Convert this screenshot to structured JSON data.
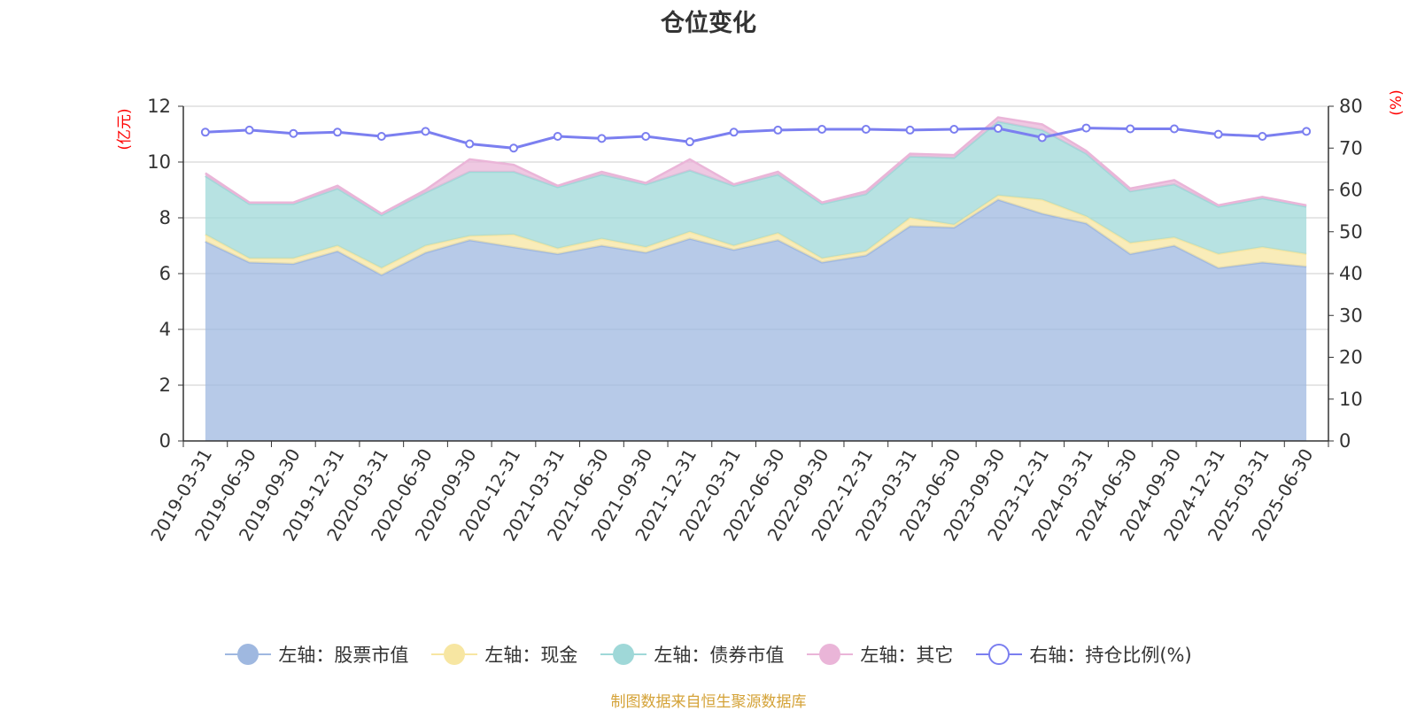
{
  "chart_data": {
    "type": "area",
    "title": "仓位变化",
    "y_left_label": "(亿元)",
    "y_right_label": "(%)",
    "y_left_range": [
      0,
      12
    ],
    "y_left_ticks": [
      "0",
      "2",
      "4",
      "6",
      "8",
      "10",
      "12"
    ],
    "y_right_range": [
      0,
      80
    ],
    "y_right_ticks": [
      "0",
      "10",
      "20",
      "30",
      "40",
      "50",
      "60",
      "70",
      "80"
    ],
    "categories": [
      "2019-03-31",
      "2019-06-30",
      "2019-09-30",
      "2019-12-31",
      "2020-03-31",
      "2020-06-30",
      "2020-09-30",
      "2020-12-31",
      "2021-03-31",
      "2021-06-30",
      "2021-09-30",
      "2021-12-31",
      "2022-03-31",
      "2022-06-30",
      "2022-09-30",
      "2022-12-31",
      "2023-03-31",
      "2023-06-30",
      "2023-09-30",
      "2023-12-31",
      "2024-03-31",
      "2024-06-30",
      "2024-09-30",
      "2024-12-31",
      "2025-03-31",
      "2025-06-30"
    ],
    "stacked": true,
    "series": [
      {
        "name": "左轴：股票市值",
        "axis": "left",
        "color": "#9fb8e0",
        "values": [
          7.15,
          6.4,
          6.35,
          6.8,
          5.95,
          6.75,
          7.2,
          6.95,
          6.7,
          7.0,
          6.75,
          7.25,
          6.85,
          7.2,
          6.4,
          6.65,
          7.7,
          7.65,
          8.65,
          8.15,
          7.8,
          6.7,
          7.0,
          6.2,
          6.4,
          6.25
        ]
      },
      {
        "name": "左轴：现金",
        "axis": "left",
        "color": "#f7e6a2",
        "values": [
          0.25,
          0.15,
          0.2,
          0.2,
          0.25,
          0.25,
          0.15,
          0.45,
          0.2,
          0.25,
          0.2,
          0.25,
          0.15,
          0.25,
          0.15,
          0.15,
          0.3,
          0.1,
          0.15,
          0.5,
          0.25,
          0.4,
          0.3,
          0.5,
          0.55,
          0.45
        ]
      },
      {
        "name": "左轴：债券市值",
        "axis": "left",
        "color": "#9fd8d8",
        "values": [
          2.1,
          1.95,
          1.95,
          2.05,
          1.9,
          1.9,
          2.3,
          2.25,
          2.2,
          2.3,
          2.25,
          2.2,
          2.15,
          2.1,
          1.95,
          2.05,
          2.2,
          2.4,
          2.65,
          2.5,
          2.25,
          1.85,
          1.9,
          1.7,
          1.75,
          1.7
        ]
      },
      {
        "name": "左轴：其它",
        "axis": "left",
        "color": "#eab5d8",
        "values": [
          0.1,
          0.05,
          0.05,
          0.1,
          0.05,
          0.1,
          0.45,
          0.25,
          0.05,
          0.1,
          0.05,
          0.4,
          0.05,
          0.1,
          0.05,
          0.1,
          0.1,
          0.1,
          0.15,
          0.2,
          0.1,
          0.1,
          0.15,
          0.05,
          0.05,
          0.05
        ]
      },
      {
        "name": "右轴：持仓比例(%)",
        "axis": "right",
        "type": "line",
        "color": "#7b7ff0",
        "values": [
          73.8,
          74.3,
          73.5,
          73.8,
          72.8,
          74.0,
          71.0,
          70.0,
          72.8,
          72.3,
          72.8,
          71.5,
          73.8,
          74.3,
          74.5,
          74.5,
          74.3,
          74.5,
          74.7,
          72.5,
          74.8,
          74.6,
          74.6,
          73.3,
          72.8,
          74.0
        ]
      }
    ],
    "legend": {
      "position": "bottom"
    },
    "grid": true
  },
  "source_note": "制图数据来自恒生聚源数据库"
}
